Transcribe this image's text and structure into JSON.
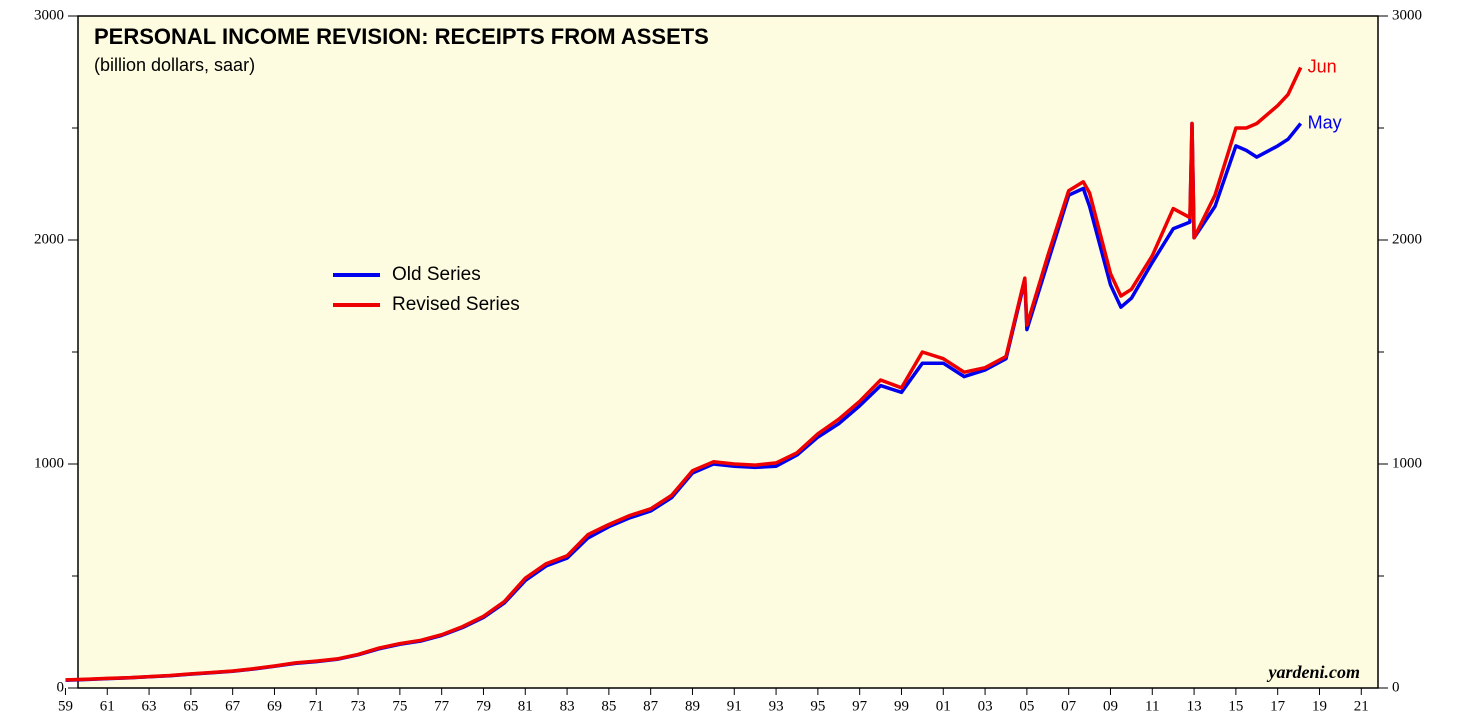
{
  "chart_data": {
    "type": "line",
    "title": "PERSONAL INCOME REVISION: RECEIPTS FROM ASSETS",
    "subtitle": "(billion dollars, saar)",
    "source": "yardeni.com",
    "x": [
      1959,
      1960,
      1961,
      1962,
      1963,
      1964,
      1965,
      1966,
      1967,
      1968,
      1969,
      1970,
      1971,
      1972,
      1973,
      1974,
      1975,
      1976,
      1977,
      1978,
      1979,
      1980,
      1981,
      1982,
      1983,
      1984,
      1985,
      1986,
      1987,
      1988,
      1989,
      1990,
      1991,
      1992,
      1993,
      1994,
      1995,
      1996,
      1997,
      1998,
      1999,
      2000,
      2001,
      2002,
      2003,
      2004,
      2004.9,
      2005,
      2006,
      2007,
      2007.7,
      2008,
      2009,
      2009.5,
      2010,
      2011,
      2012,
      2012.8,
      2012.9,
      2013,
      2014,
      2015,
      2015.5,
      2016,
      2017,
      2017.5,
      2018.1
    ],
    "series": [
      {
        "name": "Old Series",
        "label": "May",
        "color": "#0000ee",
        "values": [
          35,
          38,
          42,
          45,
          50,
          55,
          62,
          68,
          75,
          85,
          97,
          110,
          118,
          128,
          148,
          175,
          195,
          210,
          235,
          270,
          315,
          380,
          480,
          545,
          580,
          670,
          720,
          760,
          790,
          850,
          960,
          1000,
          990,
          985,
          990,
          1040,
          1120,
          1180,
          1260,
          1350,
          1320,
          1450,
          1450,
          1390,
          1420,
          1470,
          1820,
          1600,
          1900,
          2200,
          2230,
          2150,
          1800,
          1700,
          1740,
          1900,
          2050,
          2080,
          2520,
          2010,
          2150,
          2420,
          2400,
          2370,
          2420,
          2450,
          2520
        ]
      },
      {
        "name": "Revised Series",
        "label": "Jun",
        "color": "#ee0000",
        "values": [
          36,
          39,
          43,
          46,
          51,
          56,
          63,
          69,
          76,
          86,
          98,
          112,
          120,
          130,
          150,
          178,
          198,
          213,
          238,
          274,
          320,
          386,
          490,
          555,
          590,
          685,
          730,
          770,
          800,
          860,
          970,
          1010,
          1000,
          995,
          1005,
          1050,
          1135,
          1200,
          1280,
          1375,
          1340,
          1500,
          1470,
          1410,
          1430,
          1480,
          1830,
          1620,
          1930,
          2220,
          2260,
          2210,
          1850,
          1750,
          1780,
          1930,
          2140,
          2100,
          2520,
          2010,
          2200,
          2500,
          2500,
          2520,
          2600,
          2650,
          2770
        ]
      }
    ],
    "xlim": [
      1959.6,
      2021.8
    ],
    "xticks": [
      {
        "value": 1959,
        "label": "59"
      },
      {
        "value": 1961,
        "label": "61"
      },
      {
        "value": 1963,
        "label": "63"
      },
      {
        "value": 1965,
        "label": "65"
      },
      {
        "value": 1967,
        "label": "67"
      },
      {
        "value": 1969,
        "label": "69"
      },
      {
        "value": 1971,
        "label": "71"
      },
      {
        "value": 1973,
        "label": "73"
      },
      {
        "value": 1975,
        "label": "75"
      },
      {
        "value": 1977,
        "label": "77"
      },
      {
        "value": 1979,
        "label": "79"
      },
      {
        "value": 1981,
        "label": "81"
      },
      {
        "value": 1983,
        "label": "83"
      },
      {
        "value": 1985,
        "label": "85"
      },
      {
        "value": 1987,
        "label": "87"
      },
      {
        "value": 1989,
        "label": "89"
      },
      {
        "value": 1991,
        "label": "91"
      },
      {
        "value": 1993,
        "label": "93"
      },
      {
        "value": 1995,
        "label": "95"
      },
      {
        "value": 1997,
        "label": "97"
      },
      {
        "value": 1999,
        "label": "99"
      },
      {
        "value": 2001,
        "label": "01"
      },
      {
        "value": 2003,
        "label": "03"
      },
      {
        "value": 2005,
        "label": "05"
      },
      {
        "value": 2007,
        "label": "07"
      },
      {
        "value": 2009,
        "label": "09"
      },
      {
        "value": 2011,
        "label": "11"
      },
      {
        "value": 2013,
        "label": "13"
      },
      {
        "value": 2015,
        "label": "15"
      },
      {
        "value": 2017,
        "label": "17"
      },
      {
        "value": 2019,
        "label": "19"
      },
      {
        "value": 2021,
        "label": "21"
      }
    ],
    "ylim": [
      0,
      3000
    ],
    "yticks": [
      0,
      1000,
      2000,
      3000
    ],
    "yminor_ticks": [
      500,
      1500,
      2500
    ],
    "background": "#fdfce0"
  }
}
